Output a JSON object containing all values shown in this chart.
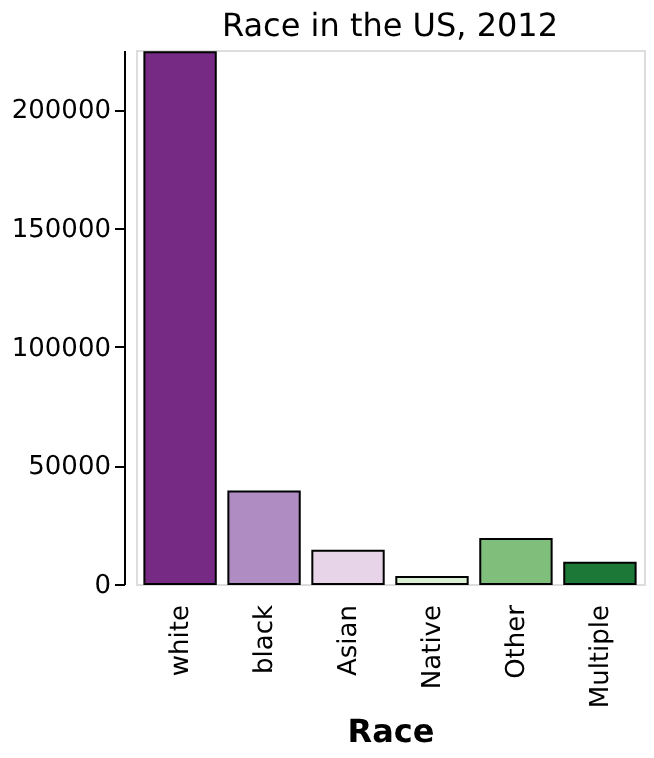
{
  "chart_data": {
    "type": "bar",
    "title": "Race in the US, 2012",
    "xlabel": "Race",
    "categories": [
      "white",
      "black",
      "Asian",
      "Native",
      "Other",
      "Multiple"
    ],
    "values": [
      224000,
      39000,
      14000,
      3000,
      19000,
      9000
    ],
    "colors": [
      "#762a83",
      "#af8dc3",
      "#e7d4e8",
      "#d9f0d3",
      "#7fbf7b",
      "#1b7837"
    ],
    "ylim": [
      0,
      225000
    ],
    "yticks": [
      0,
      50000,
      100000,
      150000,
      200000
    ],
    "grid": false
  }
}
